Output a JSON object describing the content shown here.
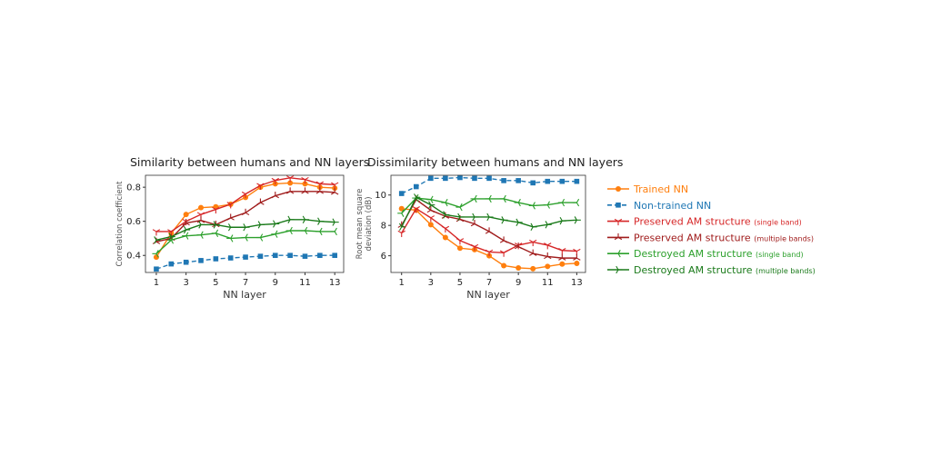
{
  "chart_data": [
    {
      "type": "line",
      "title": "Similarity between humans and NN layers",
      "xlabel": "NN layer",
      "ylabel": "Correlation coefficient",
      "x": [
        1,
        2,
        3,
        4,
        5,
        6,
        7,
        8,
        9,
        10,
        11,
        12,
        13
      ],
      "xticks": [
        1,
        3,
        5,
        7,
        9,
        11,
        13
      ],
      "yticks": [
        0.4,
        0.6,
        0.8
      ],
      "ytick_labels": [
        "0.4",
        "0.6",
        "0.8"
      ],
      "xlim": [
        0.27,
        13.6
      ],
      "ylim": [
        0.3,
        0.87
      ],
      "series": [
        {
          "name": "Trained NN",
          "values": [
            0.39,
            0.53,
            0.64,
            0.68,
            0.685,
            0.7,
            0.74,
            0.8,
            0.82,
            0.825,
            0.82,
            0.8,
            0.795
          ]
        },
        {
          "name": "Non-trained NN",
          "values": [
            0.32,
            0.35,
            0.36,
            0.37,
            0.38,
            0.385,
            0.39,
            0.395,
            0.4,
            0.4,
            0.395,
            0.4,
            0.4
          ]
        },
        {
          "name": "Preserved AM structure (single band)",
          "values": [
            0.54,
            0.54,
            0.6,
            0.64,
            0.67,
            0.7,
            0.76,
            0.81,
            0.84,
            0.855,
            0.845,
            0.82,
            0.815
          ]
        },
        {
          "name": "Preserved AM structure (multiple bands)",
          "values": [
            0.48,
            0.5,
            0.59,
            0.605,
            0.58,
            0.62,
            0.65,
            0.71,
            0.75,
            0.775,
            0.775,
            0.775,
            0.77
          ]
        },
        {
          "name": "Destroyed AM structure (single band)",
          "values": [
            0.41,
            0.49,
            0.515,
            0.52,
            0.53,
            0.5,
            0.505,
            0.505,
            0.525,
            0.545,
            0.545,
            0.54,
            0.54
          ]
        },
        {
          "name": "Destroyed AM structure (multiple bands)",
          "values": [
            0.49,
            0.51,
            0.55,
            0.58,
            0.58,
            0.565,
            0.565,
            0.58,
            0.585,
            0.61,
            0.61,
            0.6,
            0.595
          ]
        }
      ]
    },
    {
      "type": "line",
      "title": "Dissimilarity between humans and NN layers",
      "xlabel": "NN layer",
      "ylabel": "Root mean square deviation (dB)",
      "x": [
        1,
        2,
        3,
        4,
        5,
        6,
        7,
        8,
        9,
        10,
        11,
        12,
        13
      ],
      "xticks": [
        1,
        3,
        5,
        7,
        9,
        11,
        13
      ],
      "yticks": [
        6,
        8,
        10
      ],
      "ytick_labels": [
        "6",
        "8",
        "10"
      ],
      "xlim": [
        0.27,
        13.6
      ],
      "ylim": [
        4.9,
        11.3
      ],
      "series": [
        {
          "name": "Trained NN",
          "values": [
            9.1,
            9.0,
            8.05,
            7.2,
            6.5,
            6.4,
            6.0,
            5.35,
            5.2,
            5.15,
            5.3,
            5.45,
            5.5
          ]
        },
        {
          "name": "Non-trained NN",
          "values": [
            10.1,
            10.55,
            11.1,
            11.1,
            11.15,
            11.1,
            11.1,
            10.95,
            10.95,
            10.8,
            10.9,
            10.9,
            10.9
          ]
        },
        {
          "name": "Preserved AM structure (single band)",
          "values": [
            7.5,
            9.1,
            8.5,
            7.8,
            7.0,
            6.6,
            6.25,
            6.2,
            6.7,
            6.9,
            6.7,
            6.35,
            6.3
          ]
        },
        {
          "name": "Preserved AM structure (multiple bands)",
          "values": [
            8.0,
            9.7,
            9.0,
            8.6,
            8.4,
            8.1,
            7.6,
            7.0,
            6.6,
            6.15,
            5.95,
            5.85,
            5.85
          ]
        },
        {
          "name": "Destroyed AM structure (single band)",
          "values": [
            8.8,
            9.8,
            9.7,
            9.5,
            9.2,
            9.75,
            9.75,
            9.75,
            9.5,
            9.3,
            9.35,
            9.5,
            9.5
          ]
        },
        {
          "name": "Destroyed AM structure (multiple bands)",
          "values": [
            7.9,
            9.85,
            9.35,
            8.7,
            8.55,
            8.55,
            8.55,
            8.35,
            8.2,
            7.9,
            8.05,
            8.3,
            8.35
          ]
        }
      ]
    }
  ],
  "legend": {
    "placement": "right",
    "items": [
      {
        "label": "Trained NN",
        "sub": "",
        "color": "#ff7f0e",
        "marker": "circle",
        "dash": false
      },
      {
        "label": "Non-trained NN",
        "sub": "",
        "color": "#1f77b4",
        "marker": "square",
        "dash": true
      },
      {
        "label": "Preserved AM structure",
        "sub": "(single band)",
        "color": "#d62728",
        "marker": "tri_down",
        "dash": false
      },
      {
        "label": "Preserved AM structure",
        "sub": "(multiple bands)",
        "color": "#a01c1c",
        "marker": "tri_up",
        "dash": false
      },
      {
        "label": "Destroyed AM structure",
        "sub": "(single band)",
        "color": "#2ca02c",
        "marker": "tri_left",
        "dash": false
      },
      {
        "label": "Destroyed AM structure",
        "sub": "(multiple bands)",
        "color": "#1a7a1a",
        "marker": "tri_right",
        "dash": false
      }
    ]
  }
}
